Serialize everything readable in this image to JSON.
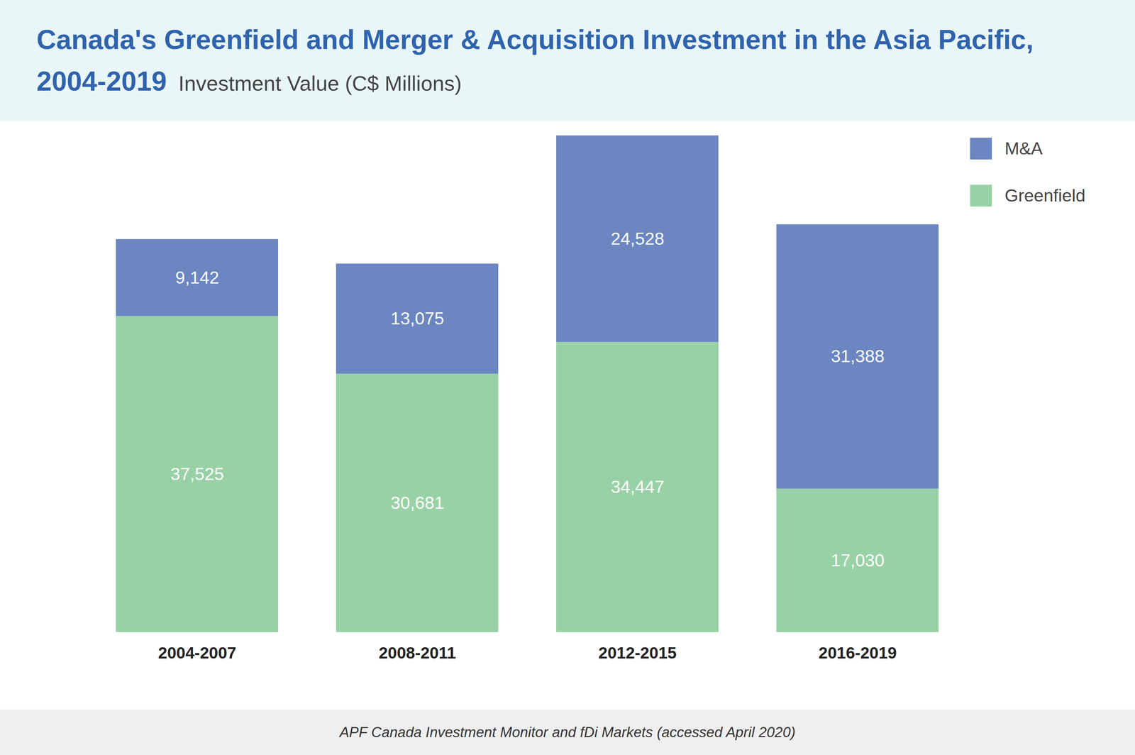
{
  "chart_data": {
    "type": "bar",
    "title": "Canada's Greenfield and Merger & Acquisition Investment in the Asia Pacific, 2004-2019",
    "subtitle": "Investment Value (C$ Millions)",
    "caption": "APF Canada Investment Monitor and fDi Markets (accessed April 2020)",
    "categories": [
      "2004-2007",
      "2008-2011",
      "2012-2015",
      "2016-2019"
    ],
    "series": [
      {
        "name": "M&A",
        "color": "#6b86c0",
        "values": [
          9142,
          13075,
          24528,
          31388
        ],
        "value_labels": [
          "9,142",
          "13,075",
          "24,528",
          "31,388"
        ]
      },
      {
        "name": "Greenfield",
        "color": "#99d1a6",
        "values": [
          37525,
          30681,
          34447,
          17030
        ],
        "value_labels": [
          "37,525",
          "30,681",
          "34,447",
          "17,030"
        ]
      }
    ],
    "stacked": true,
    "data_labels": true,
    "legend": "top-right",
    "tick_labels": "x",
    "ylim": [
      0,
      60000
    ]
  }
}
